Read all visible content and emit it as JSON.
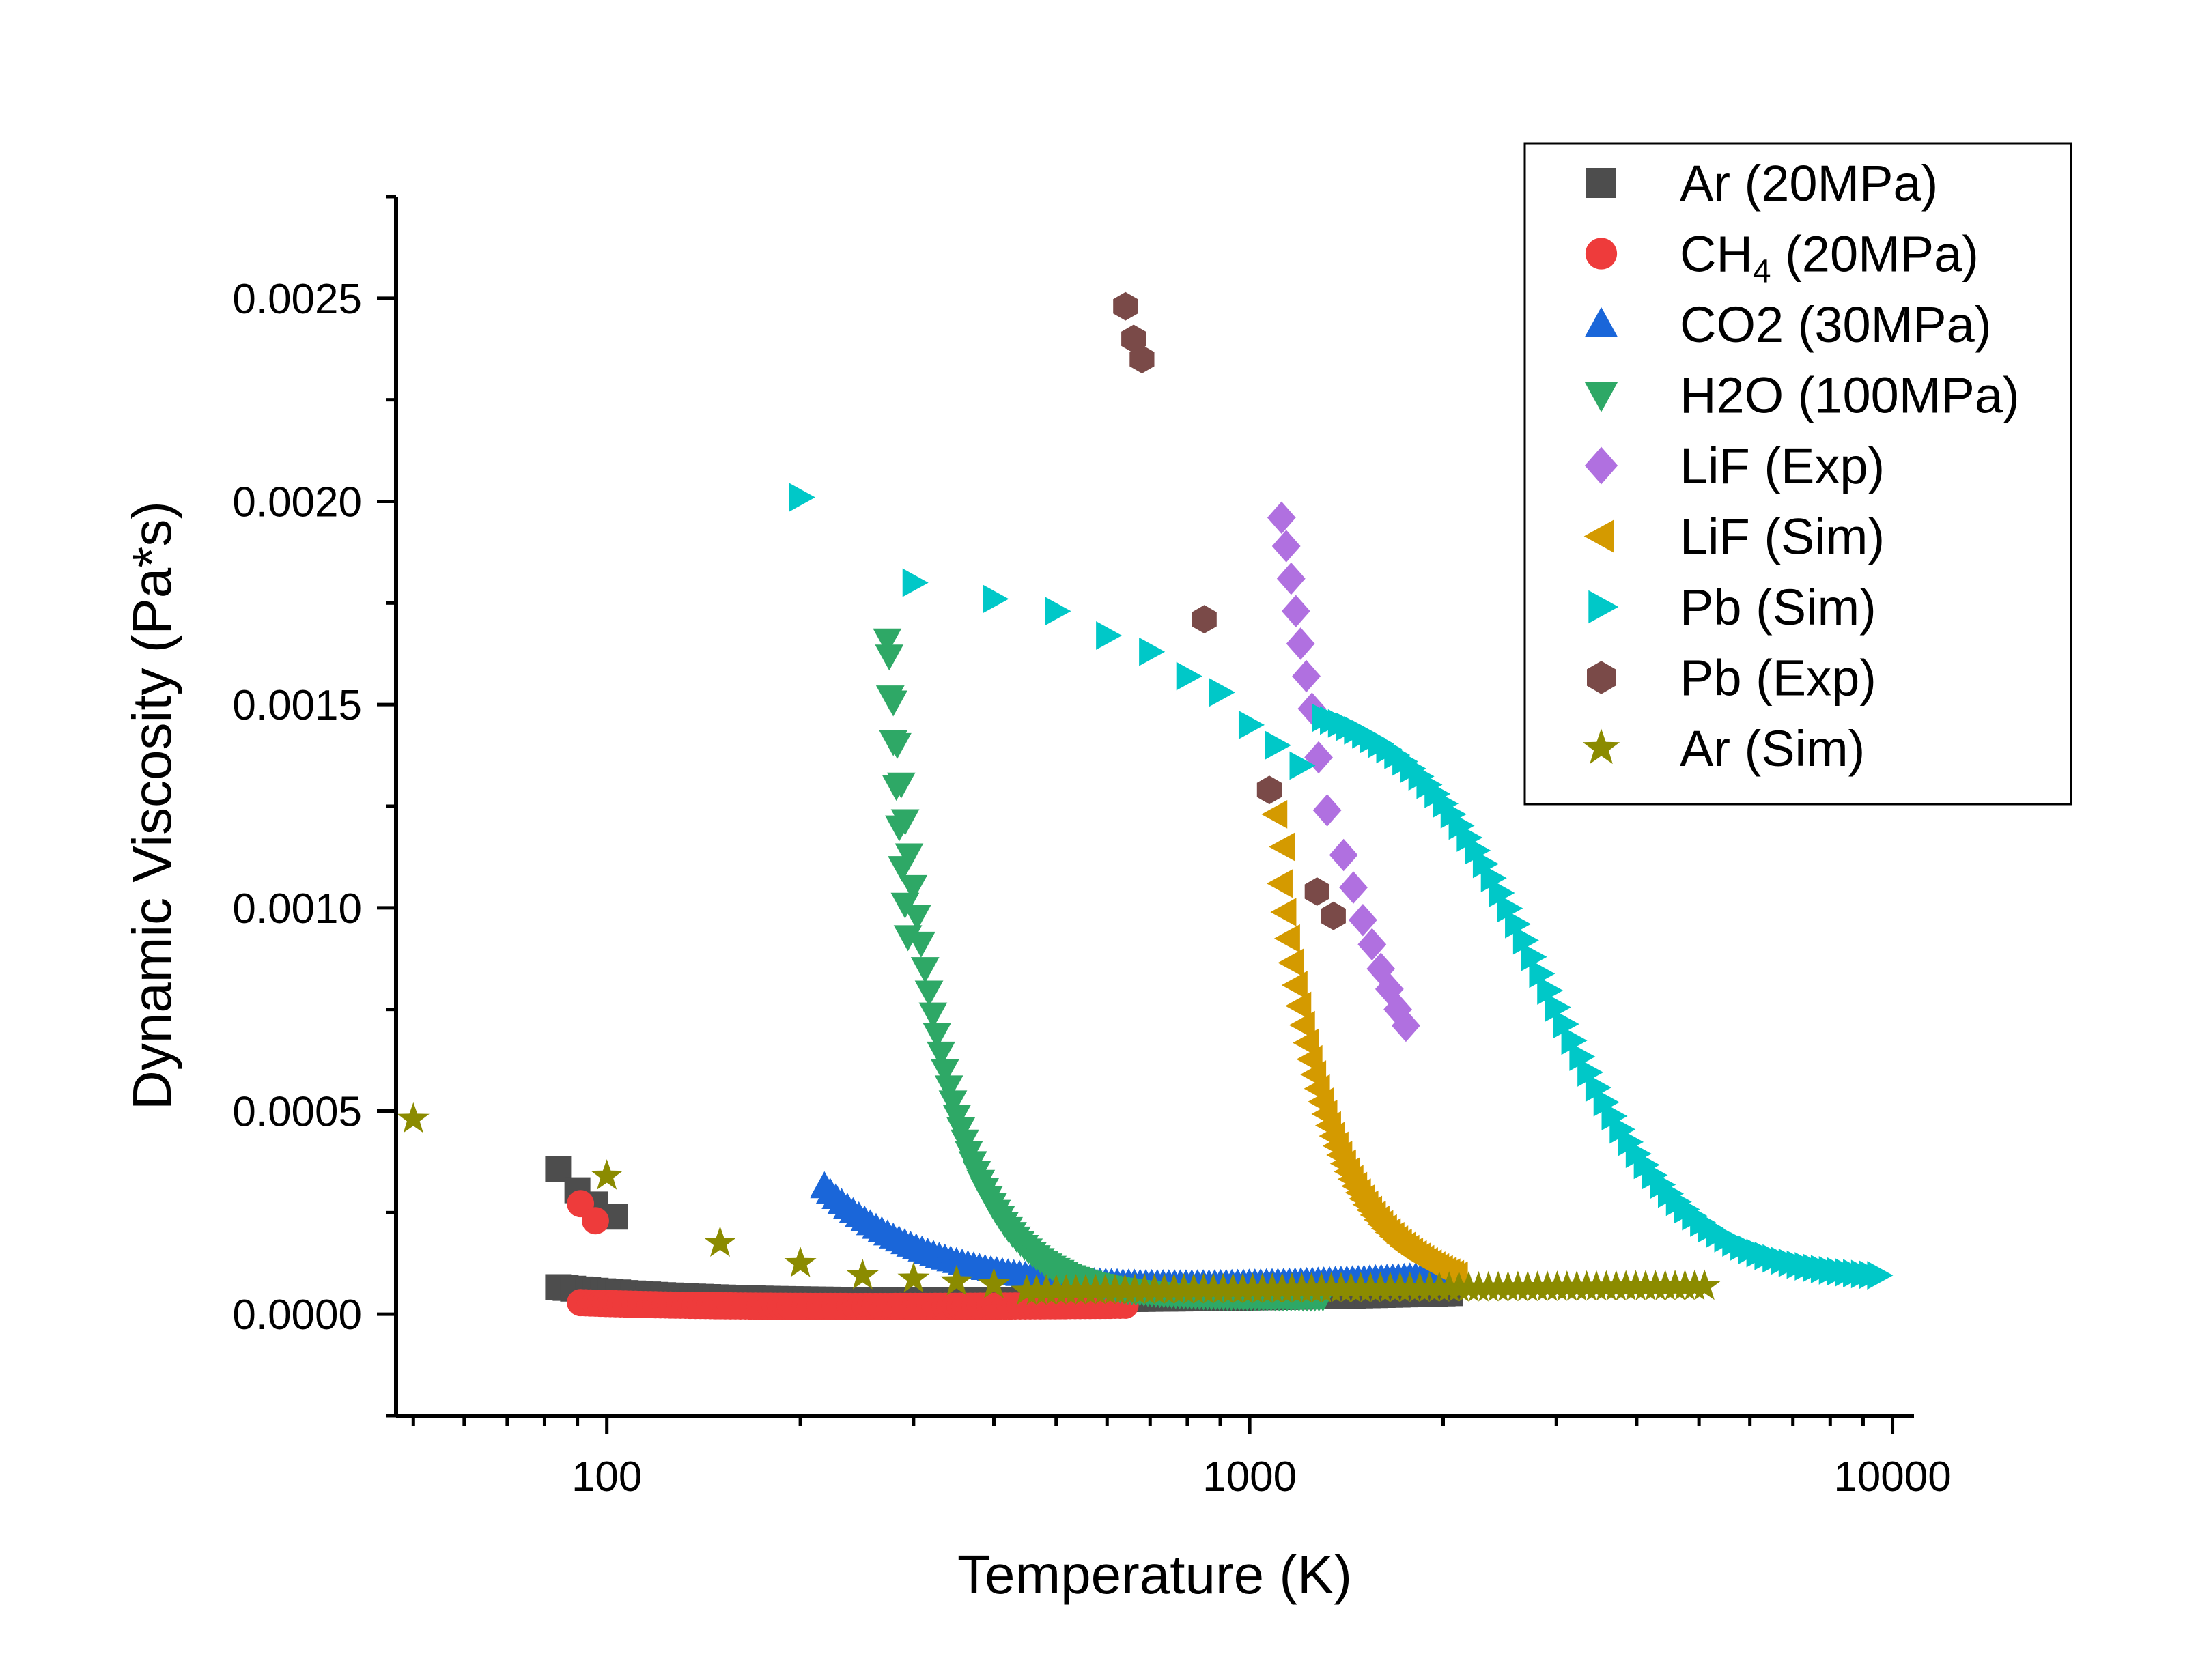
{
  "chart_data": {
    "type": "scatter",
    "title": "",
    "xlabel": "Temperature (K)",
    "ylabel": "Dynamic Viscosity (Pa*s)",
    "xscale": "log",
    "xlim": [
      47,
      10800
    ],
    "ylim": [
      -0.00025,
      0.00275
    ],
    "xticks": [
      {
        "v": 100,
        "label": "100"
      },
      {
        "v": 1000,
        "label": "1000"
      },
      {
        "v": 10000,
        "label": "10000"
      }
    ],
    "yticks": [
      {
        "v": 0,
        "label": "0.0000"
      },
      {
        "v": 0.0005,
        "label": "0.0005"
      },
      {
        "v": 0.001,
        "label": "0.0010"
      },
      {
        "v": 0.0015,
        "label": "0.0015"
      },
      {
        "v": 0.002,
        "label": "0.0020"
      },
      {
        "v": 0.0025,
        "label": "0.0025"
      }
    ],
    "legend_position": "top-right",
    "series": [
      {
        "name": "Ar (20MPa)",
        "label_main": "Ar (20MPa)",
        "label_sub": "",
        "label_tail": "",
        "marker": "square",
        "color": "#4d4d4d",
        "curve": {
          "kind": "decay",
          "tmin": 84,
          "tmax": 2050,
          "n": 120,
          "a": 2.4e-05,
          "b": 8e-06,
          "c": 4.2e-05,
          "p": 1.9,
          "slope": 3.5e-06
        },
        "points": [
          [
            84,
            0.000357
          ],
          [
            90,
            0.000305
          ],
          [
            96,
            0.00027
          ],
          [
            103,
            0.00024
          ]
        ]
      },
      {
        "name": "CH4 (20MPa)",
        "label_main": "CH",
        "label_sub": "4",
        "label_tail": " (20MPa)",
        "marker": "circle",
        "color": "#ee3b3b",
        "curve": {
          "kind": "decay",
          "tmin": 91,
          "tmax": 640,
          "n": 110,
          "a": 1.2e-05,
          "b": 6e-06,
          "c": 1.6e-05,
          "p": 1.8,
          "slope": 3e-06
        },
        "points": [
          [
            91,
            0.000272
          ],
          [
            96,
            0.00023
          ]
        ]
      },
      {
        "name": "CO2 (30MPa)",
        "label_main": "CO2 (30MPa)",
        "label_sub": "",
        "label_tail": "",
        "marker": "triangle-up",
        "color": "#1a66d9",
        "curve": {
          "kind": "decay",
          "tmin": 218,
          "tmax": 2050,
          "n": 110,
          "a": 3e-05,
          "b": 1.2e-05,
          "c": 0.00028,
          "p": 2.5,
          "slope": 1.8e-05
        },
        "points": [
          [
            218,
            0.000315
          ]
        ]
      },
      {
        "name": "H2O (100MPa)",
        "label_main": "H2O (100MPa)",
        "label_sub": "",
        "label_tail": "",
        "marker": "triangle-down",
        "color": "#2ea866",
        "curve": {
          "kind": "decay",
          "tmin": 275,
          "tmax": 1300,
          "n": 110,
          "a": 4e-05,
          "b": 1.8e-06,
          "c": 0.00158,
          "p": 5.2,
          "slope": 0
        },
        "points": [
          [
            273,
            0.00166
          ],
          [
            276,
            0.00152
          ],
          [
            279,
            0.00141
          ],
          [
            282,
            0.0013
          ],
          [
            285,
            0.0012
          ],
          [
            288,
            0.0011
          ],
          [
            291,
            0.00101
          ],
          [
            294,
            0.00093
          ]
        ]
      },
      {
        "name": "LiF (Exp)",
        "label_main": "LiF (Exp)",
        "label_sub": "",
        "label_tail": "",
        "marker": "diamond",
        "color": "#b070e0",
        "points": [
          [
            1121,
            0.00196
          ],
          [
            1140,
            0.00189
          ],
          [
            1160,
            0.00181
          ],
          [
            1180,
            0.00173
          ],
          [
            1200,
            0.00165
          ],
          [
            1225,
            0.00157
          ],
          [
            1250,
            0.00149
          ],
          [
            1280,
            0.00137
          ],
          [
            1320,
            0.00124
          ],
          [
            1400,
            0.00113
          ],
          [
            1450,
            0.00105
          ],
          [
            1500,
            0.00097
          ],
          [
            1550,
            0.00091
          ],
          [
            1600,
            0.00085
          ],
          [
            1650,
            0.0008
          ],
          [
            1700,
            0.00075
          ],
          [
            1750,
            0.00071
          ]
        ]
      },
      {
        "name": "LiF (Sim)",
        "label_main": "LiF (Sim)",
        "label_sub": "",
        "label_tail": "",
        "marker": "triangle-left",
        "color": "#d49a00",
        "curve": {
          "kind": "exp",
          "tmin": 1121,
          "tmax": 2100,
          "n": 48,
          "A": 6e-06,
          "E": 5800
        },
        "points": [
          [
            1100,
            0.00123
          ],
          [
            1130,
            0.00115
          ]
        ]
      },
      {
        "name": "Pb (Sim)",
        "label_main": "Pb (Sim)",
        "label_sub": "",
        "label_tail": "",
        "marker": "triangle-right",
        "color": "#00c8c8",
        "curve": {
          "kind": "sigmoid",
          "tmin": 1300,
          "tmax": 9500,
          "n": 70,
          "c": 8.33e-05,
          "amp": 0.00144,
          "mid": 2900,
          "k": 4.0
        },
        "points": [
          [
            200,
            0.00201
          ],
          [
            300,
            0.0018
          ],
          [
            400,
            0.00176
          ],
          [
            500,
            0.00173
          ],
          [
            600,
            0.00167
          ],
          [
            700,
            0.00163
          ],
          [
            800,
            0.00157
          ],
          [
            900,
            0.00153
          ],
          [
            1000,
            0.00145
          ],
          [
            1100,
            0.0014
          ],
          [
            1200,
            0.00135
          ]
        ]
      },
      {
        "name": "Pb (Exp)",
        "label_main": "Pb (Exp)",
        "label_sub": "",
        "label_tail": "",
        "marker": "hexagon",
        "color": "#7a4a48",
        "points": [
          [
            641,
            0.00248
          ],
          [
            660,
            0.0024
          ],
          [
            680,
            0.00235
          ],
          [
            850,
            0.00171
          ],
          [
            1073,
            0.00129
          ],
          [
            1273,
            0.00104
          ],
          [
            1350,
            0.00098
          ]
        ]
      },
      {
        "name": "Ar (Sim)",
        "label_main": "Ar (Sim)",
        "label_sub": "",
        "label_tail": "",
        "marker": "star",
        "color": "#8b8b00",
        "curve": {
          "kind": "linear",
          "tmin": 450,
          "tmax": 5100,
          "n": 70,
          "y0": 5.7e-05,
          "slope": 4.8e-06
        },
        "points": [
          [
            50,
            0.00048
          ],
          [
            100,
            0.00034
          ],
          [
            150,
            0.000175
          ],
          [
            200,
            0.000125
          ],
          [
            250,
            9.5e-05
          ],
          [
            300,
            8.7e-05
          ],
          [
            350,
            8e-05
          ],
          [
            400,
            7.3e-05
          ]
        ]
      }
    ]
  }
}
